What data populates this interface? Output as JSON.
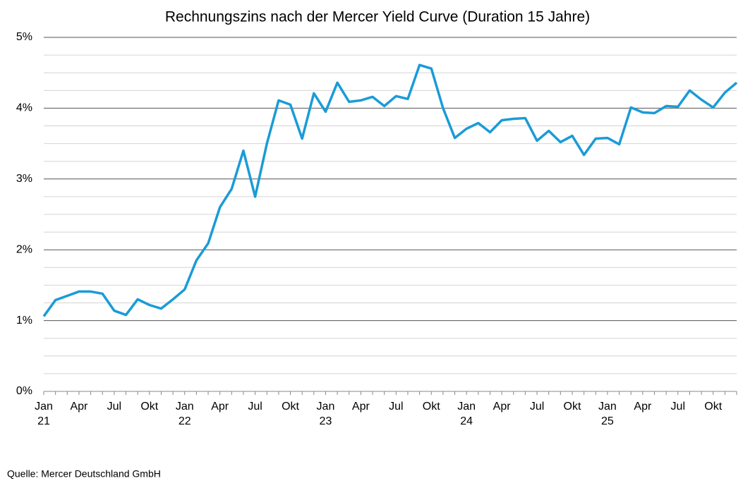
{
  "chart_data": {
    "type": "line",
    "title": "Rechnungszins nach der Mercer Yield Curve (Duration 15 Jahre)",
    "source": "Quelle: Mercer Deutschland GmbH",
    "categories": [
      "Jan",
      null,
      null,
      "Apr",
      null,
      null,
      "Jul",
      null,
      null,
      "Okt",
      null,
      null,
      "Jan",
      null,
      null,
      "Apr",
      null,
      null,
      "Jul",
      null,
      null,
      "Okt",
      null,
      null,
      "Jan",
      null,
      null,
      "Apr",
      null,
      null,
      "Jul",
      null,
      null,
      "Okt",
      null,
      null,
      "Jan",
      null,
      null,
      "Apr",
      null,
      null,
      "Jul",
      null,
      null,
      "Okt",
      null,
      null,
      "Jan",
      null,
      null,
      "Apr",
      null,
      null,
      "Jul",
      null,
      null,
      "Okt",
      null,
      null
    ],
    "category_years": [
      "21",
      null,
      null,
      null,
      null,
      null,
      null,
      null,
      null,
      null,
      null,
      null,
      "22",
      null,
      null,
      null,
      null,
      null,
      null,
      null,
      null,
      null,
      null,
      null,
      "23",
      null,
      null,
      null,
      null,
      null,
      null,
      null,
      null,
      null,
      null,
      null,
      "24",
      null,
      null,
      null,
      null,
      null,
      null,
      null,
      null,
      null,
      null,
      null,
      "25",
      null,
      null,
      null,
      null,
      null,
      null,
      null,
      null,
      null,
      null,
      null
    ],
    "series": [
      {
        "color": "#1a9bd7",
        "values": [
          1.06,
          1.29,
          1.35,
          1.41,
          1.41,
          1.38,
          1.14,
          1.08,
          1.3,
          1.22,
          1.17,
          1.3,
          1.44,
          1.85,
          2.09,
          2.6,
          2.86,
          3.4,
          2.75,
          3.5,
          4.11,
          4.05,
          3.57,
          4.21,
          3.95,
          4.36,
          4.09,
          4.11,
          4.16,
          4.03,
          4.17,
          4.13,
          4.61,
          4.56,
          4.0,
          3.58,
          3.71,
          3.79,
          3.66,
          3.83,
          3.85,
          3.86,
          3.54,
          3.68,
          3.52,
          3.61,
          3.34,
          3.57,
          3.58,
          3.49,
          4.01,
          3.94,
          3.93,
          4.03,
          4.02,
          4.25,
          4.12,
          4.01,
          4.22,
          4.36
        ]
      }
    ],
    "ylim": [
      0,
      5
    ],
    "yticks": [
      {
        "value": 0,
        "label": "0%"
      },
      {
        "value": 1,
        "label": "1%"
      },
      {
        "value": 2,
        "label": "2%"
      },
      {
        "value": 3,
        "label": "3%"
      },
      {
        "value": 4,
        "label": "4%"
      },
      {
        "value": 5,
        "label": "5%"
      }
    ],
    "minor_gridlines": [
      0.25,
      0.5,
      0.75,
      1.25,
      1.5,
      1.75,
      2.25,
      2.5,
      2.75,
      3.25,
      3.5,
      3.75,
      4.25,
      4.5,
      4.75
    ],
    "grid": true
  }
}
